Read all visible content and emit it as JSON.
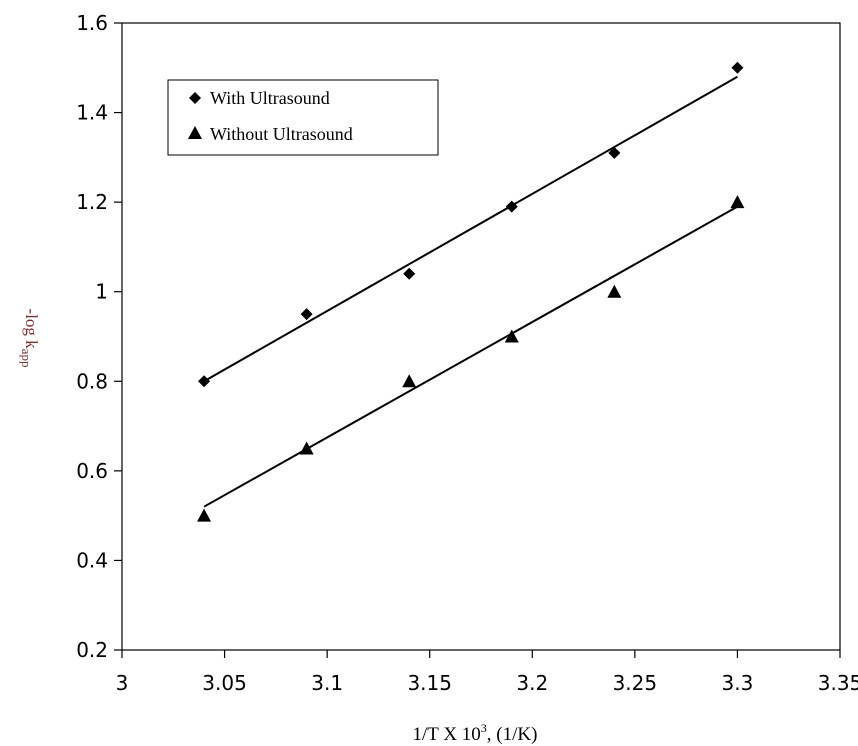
{
  "chart_data": {
    "type": "scatter",
    "title": "",
    "xlabel": "1/T X 10",
    "xlabel_sup": "3",
    "xlabel_suffix": ", (1/K)",
    "ylabel": "-log k",
    "ylabel_sub": "app",
    "xlim": [
      3,
      3.35
    ],
    "ylim": [
      0.2,
      1.6
    ],
    "xticks": [
      "3",
      "3.05",
      "3.1",
      "3.15",
      "3.2",
      "3.25",
      "3.3",
      "3.35"
    ],
    "yticks": [
      "0.2",
      "0.4",
      "0.6",
      "0.8",
      "1",
      "1.2",
      "1.4",
      "1.6"
    ],
    "grid": false,
    "legend_position": "top-left",
    "series": [
      {
        "name": "With Ultrasound",
        "marker": "diamond",
        "color": "#000000",
        "x": [
          3.04,
          3.09,
          3.14,
          3.19,
          3.24,
          3.3
        ],
        "y": [
          0.8,
          0.95,
          1.04,
          1.19,
          1.31,
          1.5
        ],
        "trendline": {
          "x": [
            3.04,
            3.3
          ],
          "y": [
            0.8,
            1.48
          ]
        }
      },
      {
        "name": "Without Ultrasound",
        "marker": "triangle",
        "color": "#000000",
        "x": [
          3.04,
          3.09,
          3.14,
          3.19,
          3.24,
          3.3
        ],
        "y": [
          0.5,
          0.65,
          0.8,
          0.9,
          1.0,
          1.2
        ],
        "trendline": {
          "x": [
            3.04,
            3.3
          ],
          "y": [
            0.52,
            1.19
          ]
        }
      }
    ]
  }
}
